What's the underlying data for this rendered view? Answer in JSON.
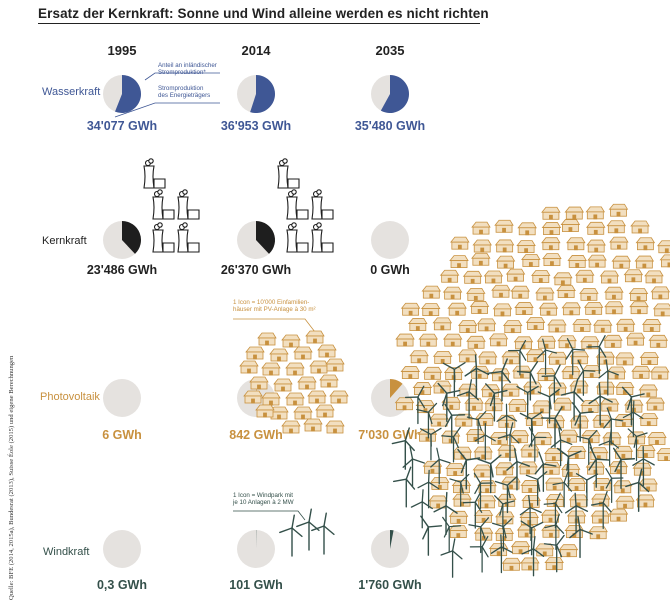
{
  "title": "Ersatz der Kernkraft: Sonne und Wind alleine werden es nicht richten",
  "source": "Quelle: BFE (2014, 2015a), Bundesrat (2013), Suisse Éole (2015) und eigene Berechnungen",
  "colors": {
    "wasserkraft": "#3f5795",
    "kernkraft": "#1e1e1e",
    "photovoltaik": "#c8913f",
    "windkraft": "#34504a",
    "pie_background": "#e5e2df",
    "house_fill": "#f2dfc0",
    "house_stroke": "#c8913f"
  },
  "annotations": {
    "share_note": [
      "Anteil an inländischer",
      "Stromproduktion*"
    ],
    "production_note": [
      "Stromproduktion",
      "des Energieträgers"
    ],
    "house_icon_note": [
      "1 Icon = 10'000 Einfamilien-",
      "häuser mit PV-Anlage à 30 m²"
    ],
    "wind_icon_note": [
      "1 Icon = Windpark mit",
      "je 10 Anlagen à 2 MW"
    ]
  },
  "icons": {
    "plant": "nuclear-plant-icon",
    "house": "house-pv-icon",
    "turbine": "wind-turbine-icon"
  },
  "chart_data": {
    "type": "pie",
    "columns": [
      "1995",
      "2014",
      "2035"
    ],
    "rows": [
      {
        "name": "Wasserkraft",
        "color": "#3f5795",
        "values": [
          "34'077 GWh",
          "36'953 GWh",
          "35'480 GWh"
        ],
        "shares": [
          0.56,
          0.55,
          0.58
        ],
        "icon_counts": [
          0,
          0,
          0
        ]
      },
      {
        "name": "Kernkraft",
        "color": "#1e1e1e",
        "values": [
          "23'486 GWh",
          "26'370 GWh",
          "0 GWh"
        ],
        "shares": [
          0.38,
          0.38,
          0.0
        ],
        "icon_counts": [
          5,
          5,
          0
        ]
      },
      {
        "name": "Photovoltaik",
        "color": "#c8913f",
        "values": [
          "6 GWh",
          "842 GWh",
          "7'030 GWh"
        ],
        "shares": [
          0.0,
          0.01,
          0.115
        ],
        "icon_counts": [
          0,
          28,
          243
        ]
      },
      {
        "name": "Windkraft",
        "color": "#34504a",
        "values": [
          "0,3 GWh",
          "101 GWh",
          "1'760 GWh"
        ],
        "shares": [
          0.0,
          0.002,
          0.03
        ],
        "icon_counts": [
          0,
          3,
          98
        ]
      }
    ]
  }
}
